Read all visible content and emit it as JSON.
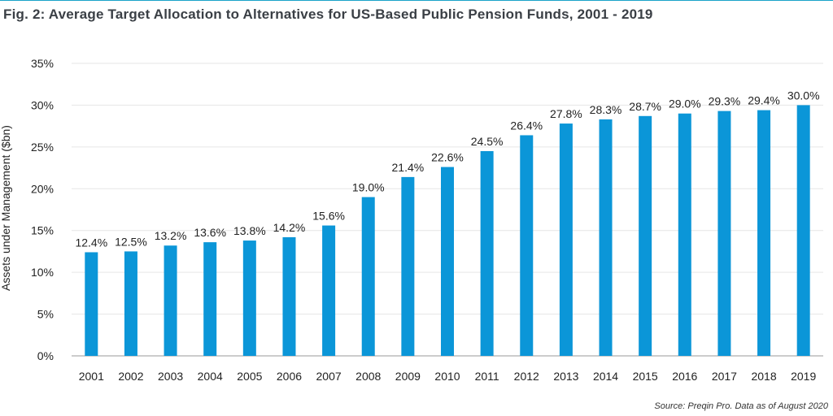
{
  "header": {
    "title": "Fig. 2: Average Target Allocation to Alternatives for US-Based Public Pension Funds, 2001 - 2019"
  },
  "footer": {
    "source": "Source: Preqin Pro. Data as of August 2020"
  },
  "colors": {
    "bar": "#0b96d8",
    "accent_rule": "#1aa3c9",
    "grid": "#e6e6e6",
    "axis": "#999999"
  },
  "chart_data": {
    "type": "bar",
    "title": "Fig. 2: Average Target Allocation to Alternatives for US-Based Public Pension Funds, 2001 - 2019",
    "xlabel": "",
    "ylabel": "Assets under Management ($bn)",
    "ylim": [
      0,
      35
    ],
    "yticks": [
      0,
      5,
      10,
      15,
      20,
      25,
      30,
      35
    ],
    "ytick_labels": [
      "0%",
      "5%",
      "10%",
      "15%",
      "20%",
      "25%",
      "30%",
      "35%"
    ],
    "categories": [
      "2001",
      "2002",
      "2003",
      "2004",
      "2005",
      "2006",
      "2007",
      "2008",
      "2009",
      "2010",
      "2011",
      "2012",
      "2013",
      "2014",
      "2015",
      "2016",
      "2017",
      "2018",
      "2019"
    ],
    "values": [
      12.4,
      12.5,
      13.2,
      13.6,
      13.8,
      14.2,
      15.6,
      19.0,
      21.4,
      22.6,
      24.5,
      26.4,
      27.8,
      28.3,
      28.7,
      29.0,
      29.3,
      29.4,
      30.0
    ],
    "data_labels": [
      "12.4%",
      "12.5%",
      "13.2%",
      "13.6%",
      "13.8%",
      "14.2%",
      "15.6%",
      "19.0%",
      "21.4%",
      "22.6%",
      "24.5%",
      "26.4%",
      "27.8%",
      "28.3%",
      "28.7%",
      "29.0%",
      "29.3%",
      "29.4%",
      "30.0%"
    ],
    "grid": true,
    "legend": "none"
  }
}
